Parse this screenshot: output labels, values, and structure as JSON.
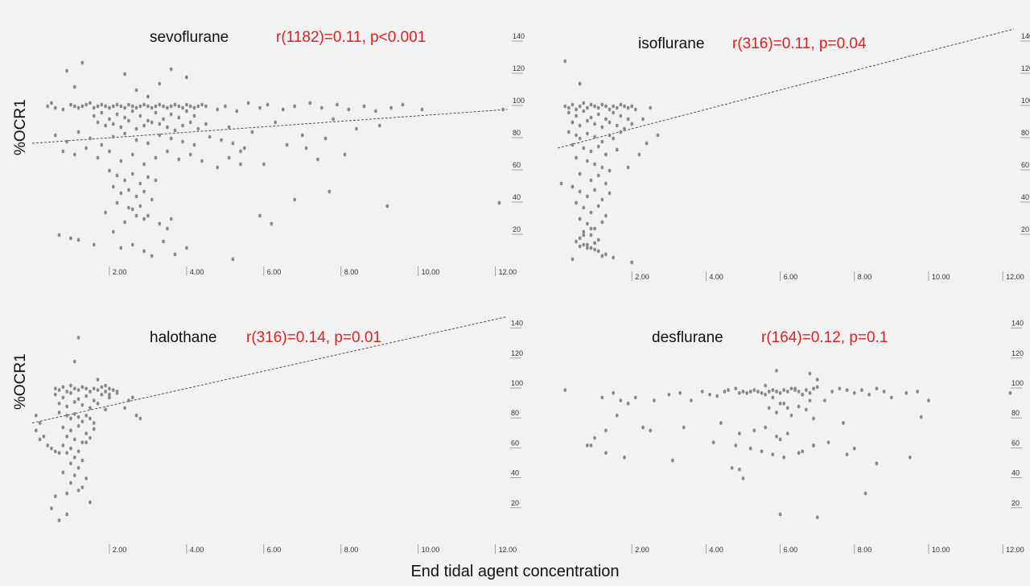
{
  "labels": {
    "ylabel": "%OCR1",
    "xlabel": "End tidal agent concentration"
  },
  "colors": {
    "point": "#8a8a8a",
    "stat": "#e02020",
    "title": "#111111",
    "axis": "#8f8f8f"
  },
  "chart_data": [
    {
      "type": "scatter",
      "title": "sevoflurane",
      "annotation": "r(1182)=0.11, p<0.001",
      "ylabel": "%OCR1",
      "x_ticks": [
        "2.00",
        "4.00",
        "6.00",
        "8.00",
        "10.00",
        "12.00"
      ],
      "y_ticks": [
        "20",
        "40",
        "60",
        "80",
        "100",
        "120",
        "140"
      ],
      "xlim": [
        0,
        12.3
      ],
      "ylim": [
        0,
        150
      ],
      "trendline": [
        [
          0,
          75
        ],
        [
          12.3,
          96
        ]
      ],
      "series": [
        {
          "x": [
            0.4,
            0.5,
            0.6,
            0.8,
            1.0,
            1.1,
            1.2,
            1.3,
            1.4,
            1.5,
            1.6,
            1.7,
            1.8,
            1.9,
            2.0,
            2.1,
            2.2,
            2.3,
            2.4,
            2.5,
            2.6,
            2.7,
            2.8,
            2.9,
            3.0,
            3.1,
            3.2,
            3.3,
            3.4,
            3.5,
            3.6,
            3.7,
            3.8,
            3.9,
            4.0,
            4.1,
            4.2,
            4.3,
            4.4,
            4.5,
            1.6,
            1.8,
            2.0,
            2.2,
            2.4,
            2.6,
            2.8,
            3.0,
            3.2,
            3.4,
            3.6,
            3.8,
            4.0,
            4.2,
            1.7,
            1.9,
            2.1,
            2.3,
            2.5,
            2.7,
            2.9,
            3.1,
            3.3,
            3.5,
            3.7,
            3.9,
            4.1,
            4.3,
            4.5,
            0.6,
            0.9,
            1.2,
            1.5,
            1.8,
            2.1,
            2.4,
            2.7,
            3.0,
            3.3,
            3.6,
            3.9,
            4.2,
            4.6,
            4.9,
            5.2,
            5.5,
            0.8,
            1.1,
            1.4,
            1.7,
            2.0,
            2.3,
            2.6,
            2.9,
            3.2,
            3.5,
            3.8,
            4.1,
            4.4,
            4.8,
            5.1,
            5.4,
            2.0,
            2.2,
            2.4,
            2.6,
            2.8,
            3.0,
            3.2,
            2.1,
            2.3,
            2.5,
            2.7,
            2.9,
            3.1,
            2.2,
            2.5,
            2.8,
            3.0,
            2.6,
            2.9,
            1.9,
            2.4,
            2.7,
            3.3,
            3.6,
            4.8,
            5.0,
            5.3,
            5.6,
            5.9,
            6.1,
            6.5,
            6.8,
            7.2,
            7.5,
            7.9,
            8.2,
            8.6,
            8.9,
            9.3,
            9.6,
            10.1,
            12.2,
            5.1,
            5.7,
            6.3,
            7.0,
            7.8,
            8.4,
            9.0,
            6.0,
            7.4,
            8.1,
            5.4,
            6.6,
            7.1,
            7.6,
            1.2,
            1.6,
            2.3,
            2.9,
            3.4,
            3.7,
            0.7,
            1.0,
            2.1,
            2.6,
            3.1,
            3.5,
            4.0,
            5.2,
            5.9,
            6.2,
            6.8,
            7.7,
            9.2,
            12.1,
            1.1,
            0.9,
            2.4,
            3.0,
            3.6,
            4.0,
            1.3,
            2.7,
            3.3
          ],
          "y": [
            98,
            100,
            97,
            96,
            99,
            98,
            97,
            98,
            99,
            100,
            97,
            98,
            99,
            98,
            97,
            98,
            99,
            98,
            97,
            99,
            98,
            97,
            98,
            99,
            98,
            97,
            98,
            99,
            98,
            97,
            98,
            99,
            98,
            97,
            99,
            98,
            97,
            98,
            99,
            98,
            92,
            94,
            90,
            93,
            91,
            95,
            92,
            89,
            94,
            90,
            93,
            91,
            95,
            92,
            88,
            86,
            87,
            85,
            89,
            84,
            86,
            88,
            87,
            85,
            83,
            86,
            88,
            84,
            87,
            80,
            76,
            82,
            78,
            74,
            79,
            81,
            77,
            75,
            80,
            78,
            76,
            74,
            79,
            77,
            75,
            72,
            70,
            68,
            72,
            66,
            70,
            64,
            68,
            62,
            66,
            70,
            65,
            68,
            64,
            60,
            66,
            62,
            58,
            55,
            52,
            56,
            50,
            54,
            52,
            48,
            44,
            46,
            42,
            45,
            40,
            38,
            35,
            36,
            30,
            34,
            28,
            32,
            26,
            30,
            25,
            28,
            96,
            98,
            95,
            100,
            97,
            99,
            96,
            98,
            100,
            97,
            99,
            96,
            98,
            95,
            97,
            99,
            96,
            96,
            85,
            82,
            88,
            80,
            90,
            84,
            86,
            62,
            65,
            68,
            70,
            74,
            72,
            78,
            15,
            12,
            10,
            8,
            14,
            6,
            18,
            16,
            20,
            12,
            5,
            22,
            10,
            3,
            30,
            25,
            40,
            45,
            36,
            38,
            110,
            120,
            118,
            104,
            121,
            116,
            125,
            108,
            112
          ]
        }
      ]
    },
    {
      "type": "scatter",
      "title": "isoflurane",
      "annotation": "r(316)=0.11, p=0.04",
      "x_ticks": [
        "2.00",
        "4.00",
        "6.00",
        "8.00",
        "10.00",
        "12.00"
      ],
      "y_ticks": [
        "20",
        "40",
        "60",
        "80",
        "100",
        "120",
        "140"
      ],
      "xlim": [
        0,
        12.3
      ],
      "ylim": [
        0,
        150
      ],
      "trendline": [
        [
          0,
          72
        ],
        [
          12.3,
          146
        ]
      ],
      "series": [
        {
          "x": [
            0.2,
            0.3,
            0.4,
            0.5,
            0.6,
            0.7,
            0.8,
            0.9,
            1.0,
            1.1,
            1.2,
            1.3,
            1.4,
            1.5,
            1.6,
            1.7,
            1.8,
            1.9,
            2.0,
            2.1,
            0.3,
            0.5,
            0.7,
            0.9,
            1.1,
            1.3,
            1.5,
            1.7,
            1.9,
            0.4,
            0.6,
            0.8,
            1.0,
            1.2,
            1.4,
            1.6,
            1.8,
            2.0,
            0.3,
            0.5,
            0.6,
            0.8,
            1.0,
            1.2,
            1.4,
            1.5,
            1.7,
            0.4,
            0.7,
            0.9,
            1.1,
            1.3,
            1.6,
            0.5,
            0.8,
            1.0,
            1.2,
            1.4,
            0.6,
            0.9,
            1.1,
            1.3,
            0.4,
            0.6,
            0.8,
            1.0,
            1.2,
            1.4,
            0.5,
            0.7,
            0.9,
            1.1,
            1.3,
            0.6,
            0.8,
            1.0,
            1.2,
            0.7,
            0.9,
            1.1,
            0.5,
            0.7,
            0.9,
            1.1,
            1.3,
            1.5,
            0.6,
            0.8,
            1.0,
            1.2,
            0.4,
            0.7,
            0.9,
            1.0,
            0.8,
            0.6,
            2.5,
            2.7,
            2.3,
            2.2,
            1.9,
            2.4,
            0.2,
            0.6,
            0.1,
            2.0
          ],
          "y": [
            98,
            97,
            99,
            96,
            98,
            100,
            97,
            99,
            98,
            97,
            99,
            98,
            96,
            98,
            97,
            99,
            98,
            97,
            98,
            96,
            94,
            92,
            95,
            91,
            93,
            90,
            94,
            92,
            90,
            88,
            86,
            89,
            87,
            85,
            88,
            86,
            84,
            87,
            82,
            80,
            78,
            81,
            79,
            76,
            80,
            78,
            82,
            74,
            72,
            70,
            73,
            68,
            71,
            66,
            64,
            62,
            60,
            58,
            56,
            52,
            55,
            50,
            48,
            45,
            42,
            46,
            40,
            44,
            38,
            35,
            32,
            36,
            30,
            28,
            25,
            22,
            26,
            20,
            18,
            15,
            14,
            12,
            10,
            8,
            6,
            4,
            16,
            12,
            9,
            5,
            3,
            18,
            22,
            13,
            10,
            11,
            97,
            80,
            90,
            68,
            60,
            75,
            126,
            112,
            50,
            1
          ]
        }
      ]
    },
    {
      "type": "scatter",
      "title": "halothane",
      "annotation": "r(316)=0.14, p=0.01",
      "x_ticks": [
        "2.00",
        "4.00",
        "6.00",
        "8.00",
        "10.00",
        "12.00"
      ],
      "y_ticks": [
        "20",
        "40",
        "60",
        "80",
        "100",
        "120",
        "140"
      ],
      "xlim": [
        0,
        12.3
      ],
      "ylim": [
        0,
        150
      ],
      "trendline": [
        [
          0,
          75
        ],
        [
          12.3,
          146
        ]
      ],
      "series": [
        {
          "x": [
            0.6,
            0.7,
            0.8,
            0.9,
            1.0,
            1.1,
            1.2,
            1.3,
            1.4,
            1.5,
            1.6,
            1.7,
            1.8,
            1.9,
            2.0,
            2.1,
            2.2,
            0.6,
            0.8,
            1.0,
            1.2,
            1.4,
            1.6,
            1.8,
            2.0,
            0.7,
            0.9,
            1.1,
            1.3,
            1.5,
            1.7,
            1.9,
            0.7,
            0.9,
            1.0,
            1.1,
            1.2,
            1.3,
            1.4,
            1.5,
            1.6,
            0.8,
            1.0,
            1.2,
            1.4,
            1.6,
            0.9,
            1.1,
            1.3,
            1.5,
            0.8,
            1.0,
            1.2,
            1.4,
            0.9,
            1.1,
            1.3,
            1.0,
            1.2,
            0.8,
            1.1,
            1.4,
            1.0,
            1.3,
            0.9,
            1.2,
            0.1,
            0.2,
            0.1,
            0.3,
            0.2,
            0.4,
            0.5,
            0.6,
            0.7,
            2.4,
            2.6,
            2.7,
            2.8,
            1.7,
            1.9,
            2.2,
            2.0,
            2.5,
            0.5,
            0.7,
            0.9,
            1.5,
            0.6,
            1.1,
            1.2
          ],
          "y": [
            98,
            97,
            99,
            96,
            100,
            98,
            97,
            99,
            98,
            96,
            98,
            97,
            99,
            96,
            98,
            97,
            95,
            94,
            92,
            95,
            91,
            93,
            90,
            94,
            92,
            88,
            86,
            89,
            87,
            85,
            88,
            84,
            82,
            80,
            78,
            81,
            79,
            76,
            80,
            78,
            75,
            72,
            70,
            73,
            68,
            71,
            66,
            64,
            62,
            65,
            60,
            58,
            56,
            62,
            55,
            52,
            50,
            48,
            45,
            42,
            40,
            38,
            35,
            32,
            28,
            30,
            80,
            75,
            70,
            66,
            64,
            60,
            58,
            56,
            55,
            85,
            92,
            80,
            78,
            104,
            100,
            96,
            94,
            90,
            18,
            10,
            14,
            22,
            26,
            116,
            132
          ]
        }
      ]
    },
    {
      "type": "scatter",
      "title": "desflurane",
      "annotation": "r(164)=0.12, p=0.1",
      "x_ticks": [
        "2.00",
        "4.00",
        "6.00",
        "8.00",
        "10.00",
        "12.00"
      ],
      "y_ticks": [
        "20",
        "40",
        "60",
        "80",
        "100",
        "120",
        "140"
      ],
      "xlim": [
        0,
        12.3
      ],
      "ylim": [
        0,
        150
      ],
      "trendline": [],
      "series": [
        {
          "x": [
            0.2,
            0.8,
            1.2,
            1.3,
            1.5,
            1.7,
            1.9,
            2.1,
            2.3,
            2.6,
            3.0,
            3.3,
            3.6,
            3.9,
            4.1,
            4.3,
            4.5,
            4.6,
            4.8,
            4.9,
            5.0,
            5.1,
            5.2,
            5.3,
            5.4,
            5.5,
            5.6,
            5.7,
            5.8,
            5.9,
            6.0,
            6.1,
            6.2,
            6.3,
            6.4,
            6.5,
            6.6,
            6.7,
            6.8,
            6.9,
            7.0,
            7.2,
            7.4,
            7.6,
            7.8,
            8.0,
            8.2,
            8.4,
            8.6,
            8.8,
            9.0,
            9.4,
            9.7,
            10.0,
            12.2,
            5.6,
            5.8,
            6.0,
            6.2,
            6.4,
            6.6,
            6.8,
            7.0,
            5.7,
            5.9,
            6.1,
            6.3,
            6.5,
            6.7,
            6.9,
            1.0,
            1.3,
            1.6,
            2.5,
            3.4,
            4.2,
            4.8,
            5.2,
            5.5,
            5.8,
            6.1,
            6.5,
            6.9,
            7.3,
            7.7,
            8.0,
            9.8,
            0.9,
            1.8,
            3.1,
            4.4,
            4.9,
            5.3,
            5.6,
            5.9,
            6.0,
            6.2,
            6.6,
            6.9,
            7.8,
            8.6,
            9.5,
            5.9,
            6.8,
            4.7,
            4.9,
            5.0,
            6.0,
            7.0,
            8.3
          ],
          "y": [
            97,
            60,
            92,
            70,
            95,
            90,
            88,
            92,
            72,
            90,
            94,
            95,
            90,
            96,
            94,
            93,
            96,
            97,
            98,
            95,
            96,
            95,
            96,
            97,
            96,
            95,
            94,
            96,
            97,
            96,
            95,
            97,
            96,
            98,
            97,
            96,
            94,
            97,
            95,
            98,
            99,
            90,
            96,
            98,
            97,
            95,
            97,
            94,
            98,
            96,
            92,
            95,
            96,
            90,
            95,
            100,
            92,
            88,
            85,
            98,
            94,
            90,
            104,
            85,
            82,
            88,
            80,
            86,
            84,
            78,
            65,
            55,
            80,
            70,
            72,
            62,
            60,
            58,
            56,
            54,
            52,
            55,
            60,
            62,
            75,
            58,
            79,
            60,
            52,
            50,
            75,
            68,
            70,
            72,
            66,
            64,
            68,
            56,
            60,
            54,
            48,
            52,
            110,
            108,
            45,
            44,
            38,
            14,
            12,
            28
          ]
        }
      ]
    }
  ]
}
